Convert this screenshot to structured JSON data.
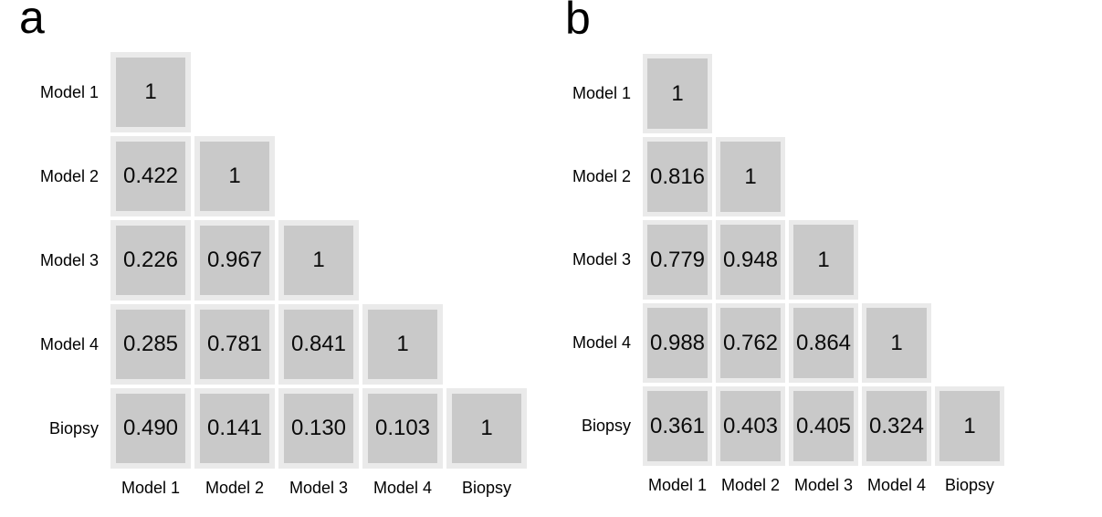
{
  "figure": {
    "background": "#ffffff",
    "cell_frame_color": "#eaeaea",
    "cell_fill_color": "#c9c9c9",
    "text_color": "#000000"
  },
  "panels": [
    {
      "letter": "a",
      "row_labels": [
        "Model 1",
        "Model 2",
        "Model 3",
        "Model 4",
        "Biopsy"
      ],
      "col_labels": [
        "Model 1",
        "Model 2",
        "Model 3",
        "Model 4",
        "Biopsy"
      ],
      "cells": [
        [
          "1"
        ],
        [
          "0.422",
          "1"
        ],
        [
          "0.226",
          "0.967",
          "1"
        ],
        [
          "0.285",
          "0.781",
          "0.841",
          "1"
        ],
        [
          "0.490",
          "0.141",
          "0.130",
          "0.103",
          "1"
        ]
      ]
    },
    {
      "letter": "b",
      "row_labels": [
        "Model 1",
        "Model 2",
        "Model 3",
        "Model 4",
        "Biopsy"
      ],
      "col_labels": [
        "Model 1",
        "Model 2",
        "Model 3",
        "Model 4",
        "Biopsy"
      ],
      "cells": [
        [
          "1"
        ],
        [
          "0.816",
          "1"
        ],
        [
          "0.779",
          "0.948",
          "1"
        ],
        [
          "0.988",
          "0.762",
          "0.864",
          "1"
        ],
        [
          "0.361",
          "0.403",
          "0.405",
          "0.324",
          "1"
        ]
      ]
    }
  ],
  "chart_data": [
    {
      "type": "heatmap",
      "title": "a",
      "categories": [
        "Model 1",
        "Model 2",
        "Model 3",
        "Model 4",
        "Biopsy"
      ],
      "layout": "lower-triangular correlation matrix, row labels left, column labels bottom",
      "matrix_lower_triangle": [
        [
          1
        ],
        [
          0.422,
          1
        ],
        [
          0.226,
          0.967,
          1
        ],
        [
          0.285,
          0.781,
          0.841,
          1
        ],
        [
          0.49,
          0.141,
          0.13,
          0.103,
          1
        ]
      ]
    },
    {
      "type": "heatmap",
      "title": "b",
      "categories": [
        "Model 1",
        "Model 2",
        "Model 3",
        "Model 4",
        "Biopsy"
      ],
      "layout": "lower-triangular correlation matrix, row labels left, column labels bottom",
      "matrix_lower_triangle": [
        [
          1
        ],
        [
          0.816,
          1
        ],
        [
          0.779,
          0.948,
          1
        ],
        [
          0.988,
          0.762,
          0.864,
          1
        ],
        [
          0.361,
          0.403,
          0.405,
          0.324,
          1
        ]
      ]
    }
  ]
}
